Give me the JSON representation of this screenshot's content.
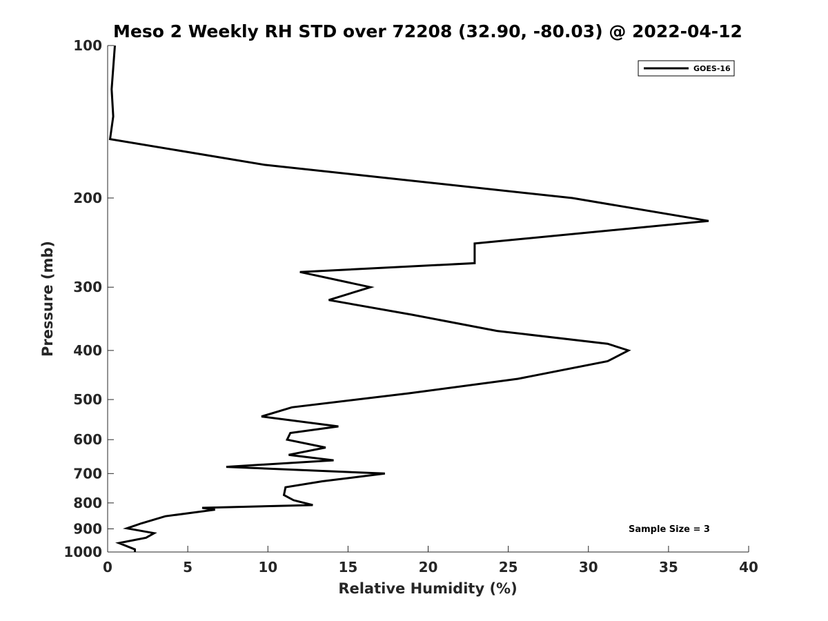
{
  "chart_data": {
    "type": "line",
    "title": "Meso 2 Weekly RH STD over 72208 (32.90, -80.03) @ 2022-04-12",
    "xlabel": "Relative Humidity (%)",
    "ylabel": "Pressure (mb)",
    "xlim": [
      0,
      40
    ],
    "ylim": [
      100,
      1000
    ],
    "yscale": "log",
    "y_reversed": true,
    "grid": false,
    "legend_position": "top-right",
    "xticks": [
      0,
      5,
      10,
      15,
      20,
      25,
      30,
      35,
      40
    ],
    "yticks": [
      100,
      200,
      300,
      400,
      500,
      600,
      700,
      800,
      900,
      1000
    ],
    "series": [
      {
        "name": "GOES-16",
        "color": "#000000",
        "x": [
          0.45,
          0.25,
          0.35,
          0.15,
          9.8,
          29.0,
          37.5,
          22.9,
          22.9,
          12.0,
          16.4,
          13.8,
          19.0,
          24.3,
          31.2,
          32.5,
          31.2,
          25.6,
          18.8,
          11.5,
          9.6,
          14.4,
          11.4,
          11.2,
          13.6,
          11.3,
          14.1,
          7.4,
          17.3,
          13.4,
          11.1,
          11.0,
          11.6,
          12.8,
          5.9,
          6.7,
          3.6,
          2.1,
          1.2,
          2.9,
          2.4,
          0.7,
          1.7,
          1.7
        ],
        "y": [
          100,
          122,
          138,
          153,
          172,
          200,
          222,
          246,
          269,
          280,
          300,
          318,
          340,
          366,
          388,
          400,
          420,
          455,
          486,
          518,
          540,
          565,
          582,
          600,
          622,
          643,
          659,
          679,
          700,
          725,
          745,
          772,
          790,
          808,
          818,
          825,
          850,
          878,
          898,
          918,
          937,
          960,
          988,
          1000
        ]
      }
    ],
    "annotation": "Sample Size = 3"
  }
}
